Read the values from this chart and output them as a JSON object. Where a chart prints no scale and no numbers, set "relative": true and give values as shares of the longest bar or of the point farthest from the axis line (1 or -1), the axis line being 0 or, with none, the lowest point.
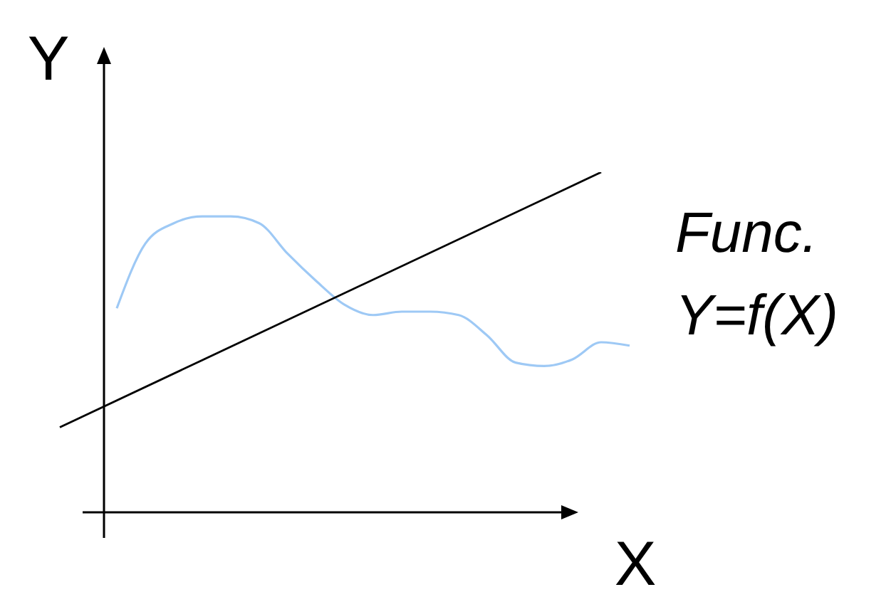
{
  "chart_data": {
    "type": "line",
    "relative": true,
    "xlabel": "X",
    "ylabel": "Y",
    "annotations": [
      "Func.",
      "Y=f(X)"
    ],
    "categories": [
      null,
      null,
      null,
      null,
      null,
      null,
      null,
      null,
      null,
      null,
      null,
      null,
      null,
      null,
      null,
      null,
      null,
      null,
      null,
      null,
      null
    ],
    "series": [
      {
        "color": "#9ec9f5",
        "values": [
          null,
          null,
          0.6,
          0.79,
          0.85,
          0.87,
          0.87,
          0.85,
          0.76,
          0.68,
          0.61,
          0.58,
          0.59,
          0.59,
          0.58,
          0.52,
          0.44,
          0.43,
          0.45,
          0.5,
          0.49
        ]
      },
      {
        "color": "#000000",
        "values": [
          0.25,
          null,
          null,
          null,
          null,
          null,
          null,
          null,
          null,
          null,
          null,
          null,
          null,
          null,
          null,
          null,
          null,
          null,
          null,
          1.0,
          null
        ]
      }
    ]
  }
}
